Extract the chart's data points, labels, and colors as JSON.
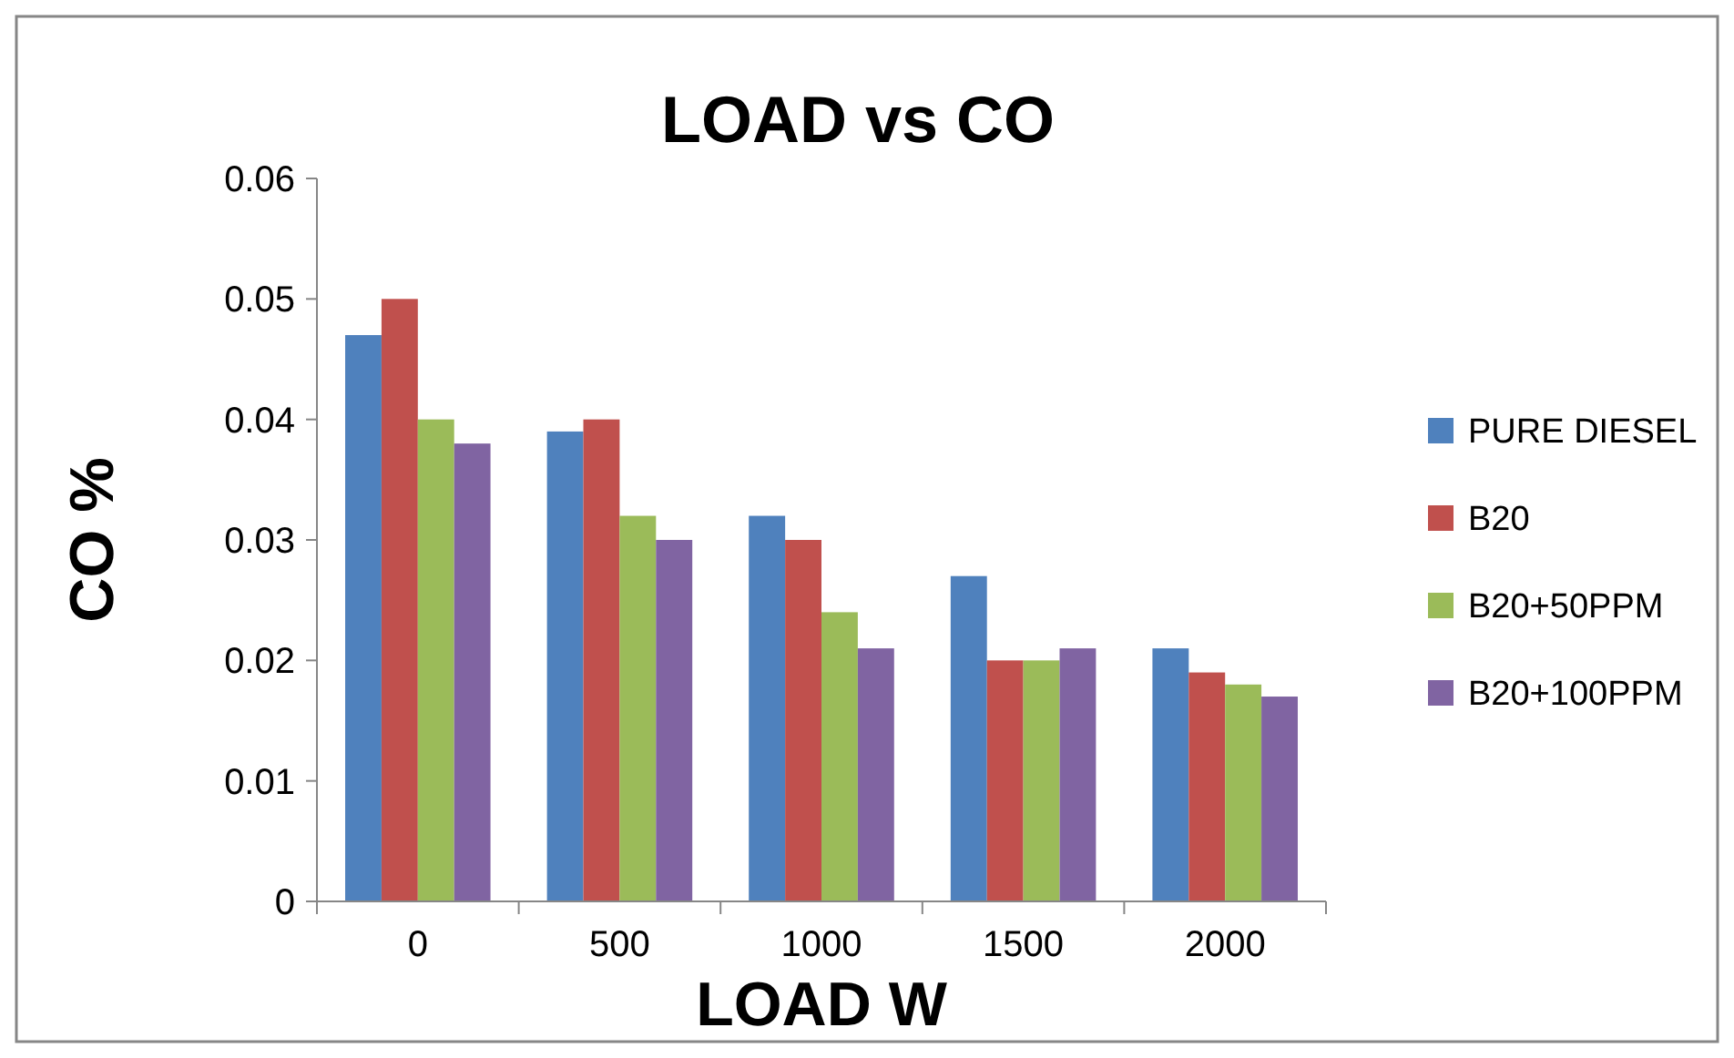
{
  "chart_data": {
    "type": "bar",
    "title": "LOAD vs CO",
    "xlabel": "LOAD W",
    "ylabel": "CO %",
    "categories": [
      "0",
      "500",
      "1000",
      "1500",
      "2000"
    ],
    "series": [
      {
        "name": "PURE DIESEL",
        "color": "#4f81bd",
        "values": [
          0.047,
          0.039,
          0.032,
          0.027,
          0.021
        ]
      },
      {
        "name": "B20",
        "color": "#c0504d",
        "values": [
          0.05,
          0.04,
          0.03,
          0.02,
          0.019
        ]
      },
      {
        "name": "B20+50PPM",
        "color": "#9bbb59",
        "values": [
          0.04,
          0.032,
          0.024,
          0.02,
          0.018
        ]
      },
      {
        "name": "B20+100PPM",
        "color": "#8064a2",
        "values": [
          0.038,
          0.03,
          0.021,
          0.021,
          0.017
        ]
      }
    ],
    "ylim": [
      0,
      0.06
    ],
    "yticks": [
      0,
      0.01,
      0.02,
      0.03,
      0.04,
      0.05,
      0.06
    ],
    "grid": false,
    "legend": "right"
  }
}
